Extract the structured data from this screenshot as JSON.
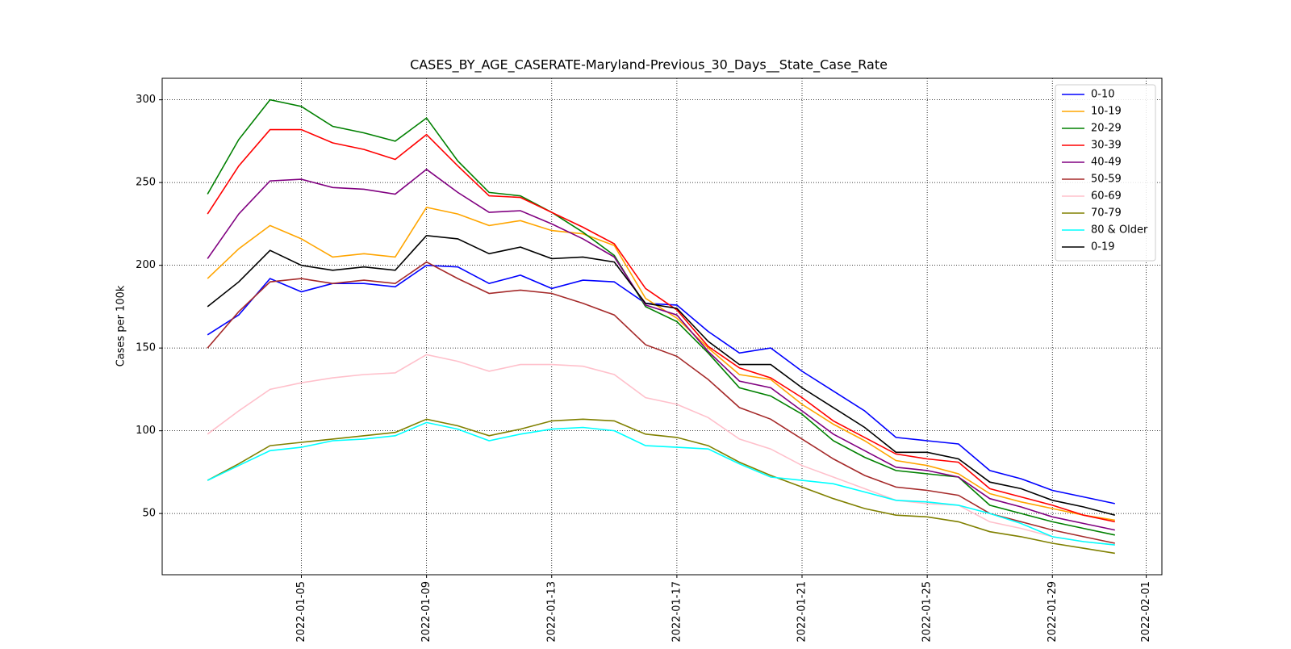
{
  "chart_data": {
    "type": "line",
    "title": "CASES_BY_AGE_CASERATE-Maryland-Previous_30_Days__State_Case_Rate",
    "y_label": "Cases per 100k",
    "x": [
      "2022-01-02",
      "2022-01-03",
      "2022-01-04",
      "2022-01-05",
      "2022-01-06",
      "2022-01-07",
      "2022-01-08",
      "2022-01-09",
      "2022-01-10",
      "2022-01-11",
      "2022-01-12",
      "2022-01-13",
      "2022-01-14",
      "2022-01-15",
      "2022-01-16",
      "2022-01-17",
      "2022-01-18",
      "2022-01-19",
      "2022-01-20",
      "2022-01-21",
      "2022-01-22",
      "2022-01-23",
      "2022-01-24",
      "2022-01-25",
      "2022-01-26",
      "2022-01-27",
      "2022-01-28",
      "2022-01-29",
      "2022-01-30",
      "2022-01-31"
    ],
    "xlim": [
      "2021-12-31T13:15:00Z",
      "2022-02-01T12:00:00Z"
    ],
    "xticks": [
      "2022-01-05",
      "2022-01-09",
      "2022-01-13",
      "2022-01-17",
      "2022-01-21",
      "2022-01-25",
      "2022-01-29",
      "2022-02-01"
    ],
    "ylim": [
      13,
      313
    ],
    "yticks": [
      50,
      100,
      150,
      200,
      250,
      300
    ],
    "grid": true,
    "legend": "upper right",
    "series": [
      {
        "name": "0-10",
        "color": "#0000ff",
        "values": [
          158,
          170,
          192,
          184,
          189,
          189,
          187,
          200,
          199,
          189,
          194,
          186,
          191,
          190,
          177,
          176,
          160,
          147,
          150,
          136,
          124,
          112,
          96,
          94,
          92,
          76,
          71,
          64,
          60,
          56
        ]
      },
      {
        "name": "10-19",
        "color": "#ffa500",
        "values": [
          192,
          210,
          224,
          216,
          205,
          207,
          205,
          235,
          231,
          224,
          227,
          221,
          219,
          212,
          180,
          168,
          150,
          134,
          131,
          116,
          104,
          94,
          82,
          79,
          74,
          62,
          57,
          53,
          49,
          46
        ]
      },
      {
        "name": "20-29",
        "color": "#008000",
        "values": [
          243,
          276,
          300,
          296,
          284,
          280,
          275,
          289,
          263,
          244,
          242,
          232,
          220,
          206,
          175,
          166,
          147,
          126,
          121,
          110,
          94,
          84,
          76,
          74,
          72,
          55,
          50,
          45,
          41,
          37
        ]
      },
      {
        "name": "30-39",
        "color": "#ff0000",
        "values": [
          231,
          260,
          282,
          282,
          274,
          270,
          264,
          279,
          260,
          242,
          241,
          232,
          223,
          213,
          186,
          173,
          151,
          138,
          132,
          120,
          106,
          96,
          86,
          83,
          81,
          65,
          60,
          55,
          49,
          45
        ]
      },
      {
        "name": "40-49",
        "color": "#800080",
        "values": [
          204,
          231,
          251,
          252,
          247,
          246,
          243,
          258,
          244,
          232,
          233,
          225,
          216,
          205,
          176,
          170,
          148,
          130,
          126,
          112,
          98,
          88,
          78,
          76,
          72,
          59,
          54,
          48,
          44,
          40
        ]
      },
      {
        "name": "50-59",
        "color": "#a52a2a",
        "values": [
          150,
          172,
          190,
          192,
          189,
          191,
          189,
          202,
          192,
          183,
          185,
          183,
          177,
          170,
          152,
          145,
          131,
          114,
          107,
          95,
          83,
          73,
          66,
          64,
          61,
          50,
          45,
          40,
          36,
          32
        ]
      },
      {
        "name": "60-69",
        "color": "#ffc0cb",
        "values": [
          98,
          112,
          125,
          129,
          132,
          134,
          135,
          146,
          142,
          136,
          140,
          140,
          139,
          134,
          120,
          116,
          108,
          95,
          89,
          79,
          72,
          65,
          58,
          56,
          55,
          45,
          41,
          36,
          33,
          31
        ]
      },
      {
        "name": "70-79",
        "color": "#808000",
        "values": [
          70,
          80,
          91,
          93,
          95,
          97,
          99,
          107,
          103,
          97,
          101,
          106,
          107,
          106,
          98,
          96,
          91,
          81,
          73,
          66,
          59,
          53,
          49,
          48,
          45,
          39,
          36,
          32,
          29,
          26
        ]
      },
      {
        "name": "80 & Older",
        "color": "#00ffff",
        "values": [
          70,
          79,
          88,
          90,
          94,
          95,
          97,
          105,
          101,
          94,
          98,
          101,
          102,
          100,
          91,
          90,
          89,
          80,
          72,
          70,
          68,
          63,
          58,
          57,
          55,
          50,
          44,
          36,
          33,
          31
        ]
      },
      {
        "name": "0-19",
        "color": "#000000",
        "values": [
          175,
          190,
          209,
          200,
          197,
          199,
          197,
          218,
          216,
          207,
          211,
          204,
          205,
          202,
          177,
          174,
          154,
          140,
          140,
          126,
          114,
          102,
          87,
          87,
          83,
          69,
          65,
          58,
          54,
          49
        ]
      }
    ]
  }
}
